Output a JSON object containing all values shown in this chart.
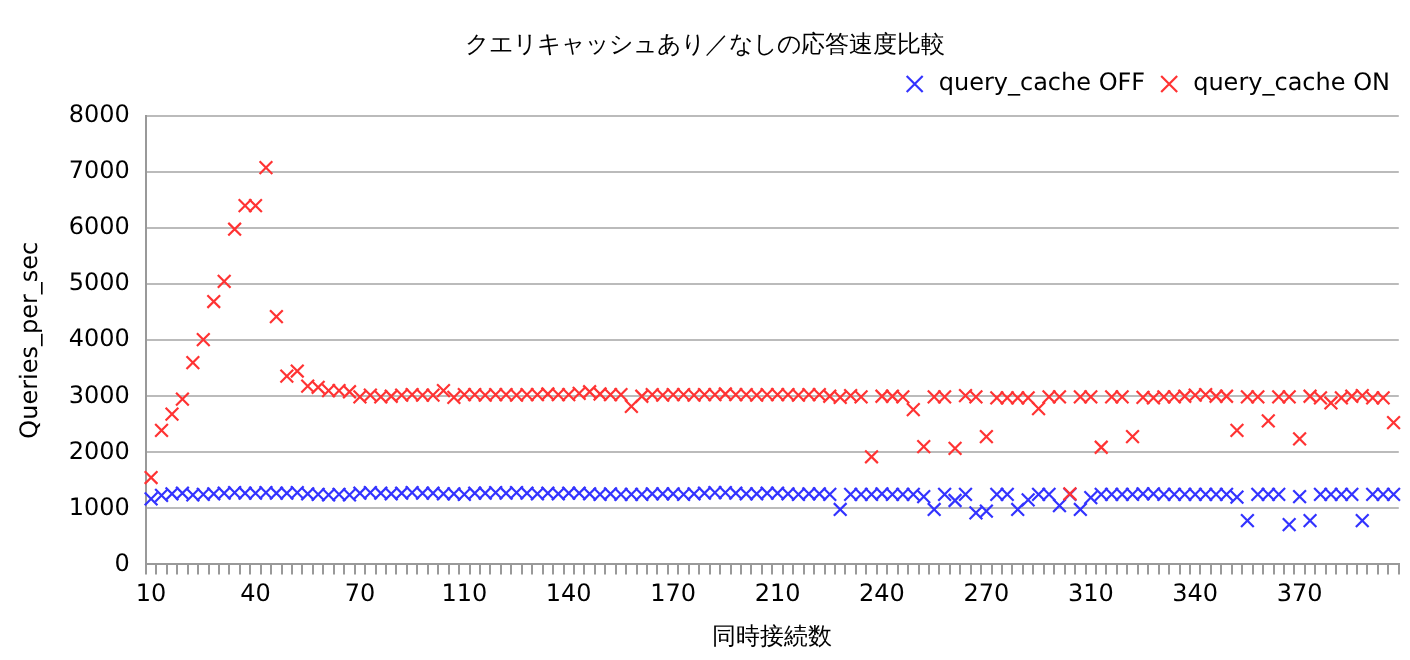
{
  "chart_data": {
    "type": "scatter",
    "title": "クエリキャッシュあり／なしの応答速度比較",
    "xlabel": "同時接続数",
    "ylabel": "Queries_per_sec",
    "categories": [
      "10",
      null,
      null,
      null,
      null,
      null,
      null,
      null,
      null,
      null,
      "40",
      null,
      null,
      null,
      null,
      null,
      null,
      null,
      null,
      null,
      "70",
      null,
      null,
      null,
      null,
      null,
      null,
      null,
      null,
      null,
      "110",
      null,
      null,
      null,
      null,
      null,
      null,
      null,
      null,
      null,
      "140",
      null,
      null,
      null,
      null,
      null,
      null,
      null,
      null,
      null,
      "170",
      null,
      null,
      null,
      null,
      null,
      null,
      null,
      null,
      null,
      "210",
      null,
      null,
      null,
      null,
      null,
      null,
      null,
      null,
      null,
      "240",
      null,
      null,
      null,
      null,
      null,
      null,
      null,
      null,
      null,
      "270",
      null,
      null,
      null,
      null,
      null,
      null,
      null,
      null,
      null,
      "310",
      null,
      null,
      null,
      null,
      null,
      null,
      null,
      null,
      null,
      "340",
      null,
      null,
      null,
      null,
      null,
      null,
      null,
      null,
      null,
      "370",
      null,
      null,
      null,
      null,
      null,
      null,
      null,
      null,
      null
    ],
    "series": [
      {
        "name": "query_cache OFF",
        "color": "#3333ff",
        "values": [
          1170,
          1230,
          1260,
          1270,
          1240,
          1250,
          1260,
          1270,
          1280,
          1270,
          1270,
          1280,
          1270,
          1270,
          1280,
          1260,
          1250,
          1240,
          1250,
          1240,
          1270,
          1280,
          1270,
          1260,
          1270,
          1280,
          1270,
          1270,
          1260,
          1260,
          1250,
          1270,
          1270,
          1280,
          1270,
          1280,
          1270,
          1260,
          1270,
          1260,
          1270,
          1270,
          1260,
          1250,
          1260,
          1250,
          1250,
          1250,
          1260,
          1260,
          1260,
          1250,
          1260,
          1270,
          1280,
          1280,
          1270,
          1260,
          1260,
          1270,
          1270,
          1260,
          1250,
          1260,
          1260,
          1250,
          980,
          1250,
          1250,
          1250,
          1260,
          1250,
          1250,
          1250,
          1210,
          980,
          1250,
          1140,
          1250,
          920,
          950,
          1250,
          1250,
          980,
          1150,
          1250,
          1250,
          1050,
          1250,
          980,
          1190,
          1250,
          1250,
          1250,
          1250,
          1260,
          1260,
          1250,
          1250,
          1250,
          1250,
          1250,
          1250,
          1250,
          1200,
          780,
          1250,
          1250,
          1250,
          710,
          1210,
          780,
          1250,
          1250,
          1250,
          1250,
          780,
          1250,
          1250,
          1250
        ]
      },
      {
        "name": "query_cache ON",
        "color": "#ff3333",
        "values": [
          1550,
          2390,
          2680,
          2950,
          3600,
          4010,
          4690,
          5050,
          5980,
          6400,
          6400,
          7080,
          4420,
          3360,
          3450,
          3180,
          3160,
          3100,
          3100,
          3080,
          2990,
          3020,
          2990,
          3000,
          3020,
          3030,
          3020,
          3020,
          3100,
          2980,
          3030,
          3030,
          3020,
          3030,
          3030,
          3020,
          3030,
          3030,
          3040,
          3030,
          3030,
          3050,
          3080,
          3040,
          3030,
          3030,
          2820,
          3000,
          3030,
          3020,
          3030,
          3030,
          3020,
          3030,
          3030,
          3040,
          3030,
          3030,
          3020,
          3030,
          3030,
          3030,
          3020,
          3030,
          3030,
          3000,
          2980,
          3010,
          2990,
          1920,
          3000,
          3000,
          2990,
          2760,
          2100,
          2990,
          2990,
          2070,
          3010,
          2990,
          2280,
          2970,
          2970,
          2970,
          2970,
          2780,
          2990,
          2990,
          1260,
          2990,
          2990,
          2090,
          2990,
          2990,
          2280,
          2980,
          2970,
          2990,
          2990,
          3000,
          3020,
          3030,
          3000,
          3000,
          2390,
          2990,
          2990,
          2560,
          2990,
          2990,
          2240,
          3000,
          2970,
          2880,
          2970,
          3000,
          3010,
          2970,
          2970,
          2530
        ]
      }
    ],
    "ylim": [
      0,
      8000
    ],
    "yticks": [
      0,
      1000,
      2000,
      3000,
      4000,
      5000,
      6000,
      7000,
      8000
    ],
    "grid": "y",
    "legend": "top right",
    "marker": "cross"
  }
}
